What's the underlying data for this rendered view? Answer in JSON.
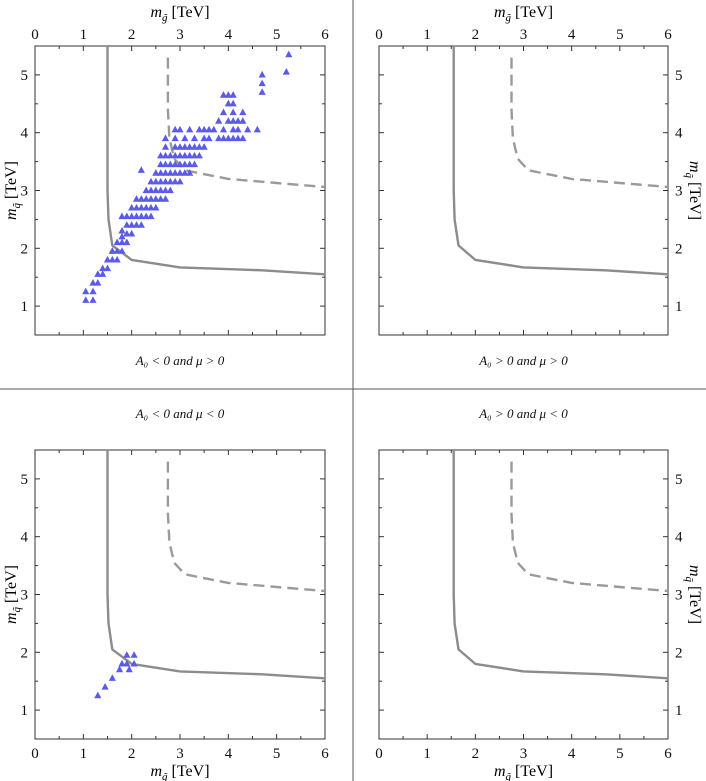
{
  "figure": {
    "x_axis_label": "m",
    "x_axis_sub": "g̃",
    "x_axis_unit": "[TeV]",
    "y_axis_label": "m",
    "y_axis_sub": "q̃",
    "y_axis_unit": "[TeV]",
    "colors": {
      "solid": "#8c8c8c",
      "dashed": "#9a9a9a",
      "points": "#5b5bea",
      "frame": "#333333"
    }
  },
  "chart_data": [
    {
      "type": "scatter",
      "caption": "A₀ < 0 and μ > 0",
      "xlim": [
        0,
        6
      ],
      "ylim": [
        0.5,
        5.5
      ],
      "x_ticks": [
        0,
        1,
        2,
        3,
        4,
        5,
        6
      ],
      "y_ticks": [
        1,
        2,
        3,
        4,
        5
      ],
      "series": [
        {
          "style": "solid",
          "x": [
            1.5,
            1.5,
            1.52,
            1.6,
            2.0,
            3.0,
            4.7,
            6.0
          ],
          "y": [
            5.5,
            3.0,
            2.5,
            2.05,
            1.8,
            1.67,
            1.62,
            1.55
          ]
        },
        {
          "style": "dashed",
          "x": [
            2.75,
            2.75,
            2.78,
            2.88,
            3.1,
            4.0,
            5.0,
            6.0
          ],
          "y": [
            5.3,
            4.4,
            3.9,
            3.55,
            3.35,
            3.2,
            3.13,
            3.06
          ]
        },
        {
          "style": "points",
          "x": [
            1.05,
            1.2,
            1.05,
            1.2,
            1.2,
            1.3,
            1.3,
            1.4,
            1.4,
            1.5,
            1.5,
            1.6,
            1.6,
            1.7,
            1.7,
            1.8,
            1.8,
            1.9,
            1.6,
            1.7,
            1.8,
            1.9,
            2.0,
            1.8,
            1.9,
            2.0,
            2.1,
            2.2,
            1.8,
            1.9,
            2.0,
            2.1,
            2.2,
            2.3,
            2.4,
            2.0,
            2.1,
            2.2,
            2.3,
            2.4,
            2.5,
            2.1,
            2.2,
            2.3,
            2.4,
            2.5,
            2.6,
            2.7,
            2.3,
            2.4,
            2.5,
            2.6,
            2.7,
            2.8,
            2.2,
            2.4,
            2.5,
            2.6,
            2.7,
            2.8,
            2.9,
            3.0,
            2.5,
            2.6,
            2.7,
            2.8,
            2.9,
            3.0,
            3.1,
            3.2,
            2.6,
            2.7,
            2.8,
            2.9,
            3.0,
            3.1,
            3.2,
            3.3,
            2.6,
            2.7,
            2.8,
            2.9,
            3.0,
            3.1,
            3.2,
            3.3,
            3.4,
            2.7,
            2.9,
            3.0,
            3.1,
            3.2,
            3.3,
            3.4,
            3.5,
            2.7,
            2.9,
            3.1,
            3.3,
            3.5,
            2.9,
            3.0,
            3.2,
            3.4,
            3.5,
            3.6,
            3.6,
            3.8,
            3.9,
            4.0,
            4.1,
            4.2,
            4.3,
            3.7,
            3.9,
            4.1,
            4.2,
            4.4,
            4.6,
            3.8,
            4.0,
            4.1,
            4.2,
            4.3,
            3.9,
            4.1,
            4.3,
            4.7,
            4.7,
            5.2,
            4.0,
            4.1,
            5.25,
            3.9,
            4.0,
            4.1,
            4.7
          ],
          "y": [
            1.1,
            1.1,
            1.25,
            1.25,
            1.4,
            1.4,
            1.55,
            1.55,
            1.65,
            1.65,
            1.8,
            1.8,
            1.95,
            1.8,
            1.95,
            1.95,
            2.1,
            2.1,
            1.95,
            2.1,
            2.2,
            2.25,
            2.25,
            2.3,
            2.4,
            2.4,
            2.4,
            2.4,
            2.55,
            2.55,
            2.55,
            2.55,
            2.55,
            2.55,
            2.55,
            2.7,
            2.7,
            2.7,
            2.7,
            2.7,
            2.7,
            2.85,
            2.85,
            2.85,
            2.85,
            2.85,
            2.85,
            2.85,
            3.0,
            3.0,
            3.0,
            3.0,
            3.0,
            3.0,
            3.35,
            3.15,
            3.15,
            3.15,
            3.15,
            3.15,
            3.15,
            3.15,
            3.3,
            3.3,
            3.3,
            3.3,
            3.3,
            3.3,
            3.3,
            3.3,
            3.45,
            3.45,
            3.45,
            3.45,
            3.45,
            3.45,
            3.45,
            3.45,
            3.6,
            3.6,
            3.6,
            3.6,
            3.6,
            3.6,
            3.6,
            3.6,
            3.6,
            3.75,
            3.75,
            3.75,
            3.75,
            3.75,
            3.75,
            3.75,
            3.75,
            3.9,
            3.9,
            3.9,
            3.9,
            3.9,
            4.05,
            4.05,
            4.05,
            4.05,
            4.05,
            4.05,
            3.9,
            3.9,
            3.9,
            3.9,
            3.9,
            3.9,
            3.9,
            4.05,
            4.05,
            4.05,
            4.05,
            4.05,
            4.05,
            4.2,
            4.2,
            4.2,
            4.2,
            4.2,
            4.35,
            4.35,
            4.35,
            4.7,
            4.85,
            5.05,
            4.5,
            4.5,
            5.35,
            4.65,
            4.65,
            4.65,
            5.0
          ]
        }
      ]
    },
    {
      "type": "line",
      "caption": "A₀ > 0 and μ > 0",
      "xlim": [
        0,
        6
      ],
      "ylim": [
        0.5,
        5.5
      ],
      "x_ticks": [
        0,
        1,
        2,
        3,
        4,
        5,
        6
      ],
      "y_ticks": [
        1,
        2,
        3,
        4,
        5
      ],
      "series": [
        {
          "style": "solid",
          "x": [
            1.55,
            1.55,
            1.57,
            1.65,
            2.0,
            3.0,
            4.7,
            6.0
          ],
          "y": [
            5.5,
            3.0,
            2.5,
            2.05,
            1.8,
            1.67,
            1.62,
            1.55
          ]
        },
        {
          "style": "dashed",
          "x": [
            2.75,
            2.75,
            2.78,
            2.88,
            3.1,
            4.0,
            5.0,
            6.0
          ],
          "y": [
            5.3,
            4.4,
            3.9,
            3.55,
            3.35,
            3.2,
            3.13,
            3.06
          ]
        }
      ]
    },
    {
      "type": "scatter",
      "caption": "A₀ < 0 and μ < 0",
      "xlim": [
        0,
        6
      ],
      "ylim": [
        0.5,
        5.5
      ],
      "x_ticks": [
        0,
        1,
        2,
        3,
        4,
        5,
        6
      ],
      "y_ticks": [
        1,
        2,
        3,
        4,
        5
      ],
      "series": [
        {
          "style": "solid",
          "x": [
            1.5,
            1.5,
            1.52,
            1.6,
            2.0,
            3.0,
            4.7,
            6.0
          ],
          "y": [
            5.5,
            3.0,
            2.5,
            2.05,
            1.8,
            1.67,
            1.62,
            1.55
          ]
        },
        {
          "style": "dashed",
          "x": [
            2.75,
            2.75,
            2.78,
            2.88,
            3.1,
            4.0,
            5.0,
            6.0
          ],
          "y": [
            5.3,
            4.4,
            3.9,
            3.55,
            3.35,
            3.2,
            3.13,
            3.06
          ]
        },
        {
          "style": "points",
          "x": [
            1.3,
            1.45,
            1.6,
            1.75,
            1.9,
            2.05,
            1.9,
            1.8,
            2.05,
            1.95
          ],
          "y": [
            1.25,
            1.4,
            1.55,
            1.7,
            1.8,
            1.95,
            1.95,
            1.8,
            1.8,
            1.7
          ]
        }
      ]
    },
    {
      "type": "line",
      "caption": "A₀ > 0 and μ < 0",
      "xlim": [
        0,
        6
      ],
      "ylim": [
        0.5,
        5.5
      ],
      "x_ticks": [
        0,
        1,
        2,
        3,
        4,
        5,
        6
      ],
      "y_ticks": [
        1,
        2,
        3,
        4,
        5
      ],
      "series": [
        {
          "style": "solid",
          "x": [
            1.55,
            1.55,
            1.57,
            1.65,
            2.0,
            3.0,
            4.7,
            6.0
          ],
          "y": [
            5.5,
            3.0,
            2.5,
            2.05,
            1.8,
            1.67,
            1.62,
            1.55
          ]
        },
        {
          "style": "dashed",
          "x": [
            2.75,
            2.75,
            2.78,
            2.88,
            3.1,
            4.0,
            5.0,
            6.0
          ],
          "y": [
            5.3,
            4.4,
            3.9,
            3.55,
            3.35,
            3.2,
            3.13,
            3.06
          ]
        }
      ]
    }
  ]
}
